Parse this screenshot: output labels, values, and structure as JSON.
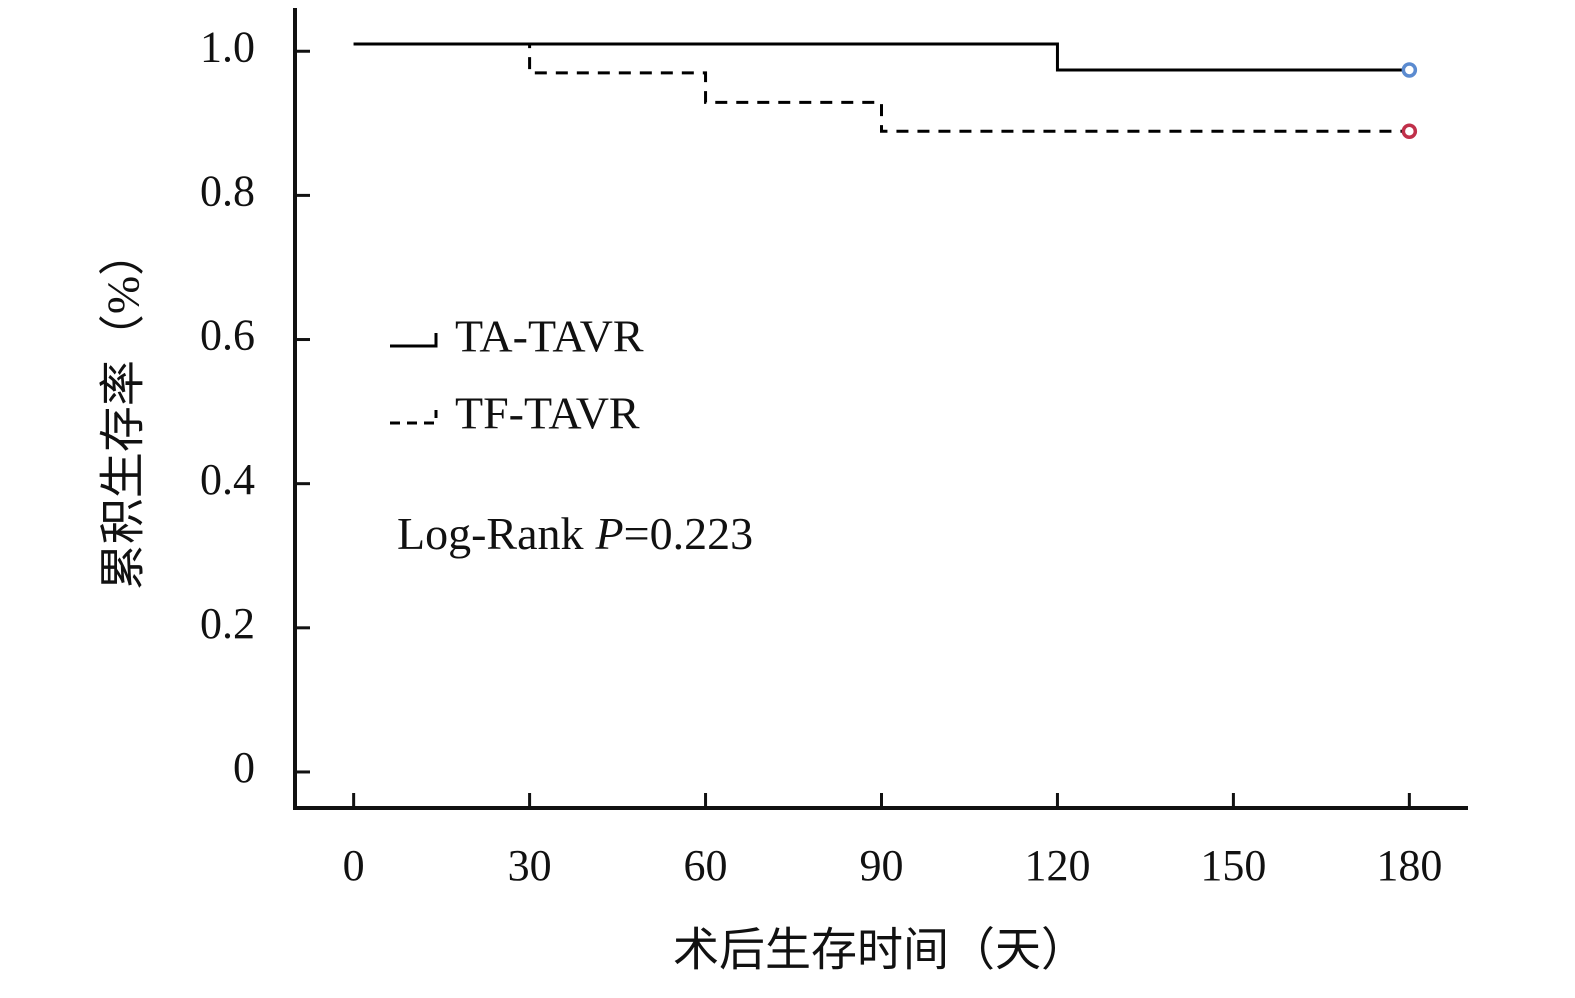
{
  "chart_data": {
    "type": "line",
    "step": "post",
    "x_label": "术后生存时间（天）",
    "y_label": "累积生存率（%）",
    "x": [
      0,
      30,
      60,
      90,
      120,
      180
    ],
    "series": [
      {
        "name": "TA-TAVR",
        "color": "#000000",
        "dash": false,
        "marker_color": "#5b8bd0",
        "values": [
          1.01,
          1.01,
          1.01,
          1.01,
          0.974,
          0.974
        ]
      },
      {
        "name": "TF-TAVR",
        "color": "#000000",
        "dash": true,
        "marker_color": "#c0304a",
        "values": [
          1.01,
          0.97,
          0.929,
          0.889,
          0.889,
          0.889
        ]
      }
    ],
    "xlim": [
      -10,
      190
    ],
    "xticks": [
      0,
      30,
      60,
      90,
      120,
      150,
      180
    ],
    "ylim": [
      -0.05,
      1.06
    ],
    "yticks": [
      0,
      0.2,
      0.4,
      0.6,
      0.8,
      {
        "value": 1,
        "label": "1.0"
      }
    ],
    "annotation": {
      "prefix": "Log-Rank",
      "italic": "P",
      "suffix": "=0.223"
    },
    "legend": "upper-left"
  }
}
